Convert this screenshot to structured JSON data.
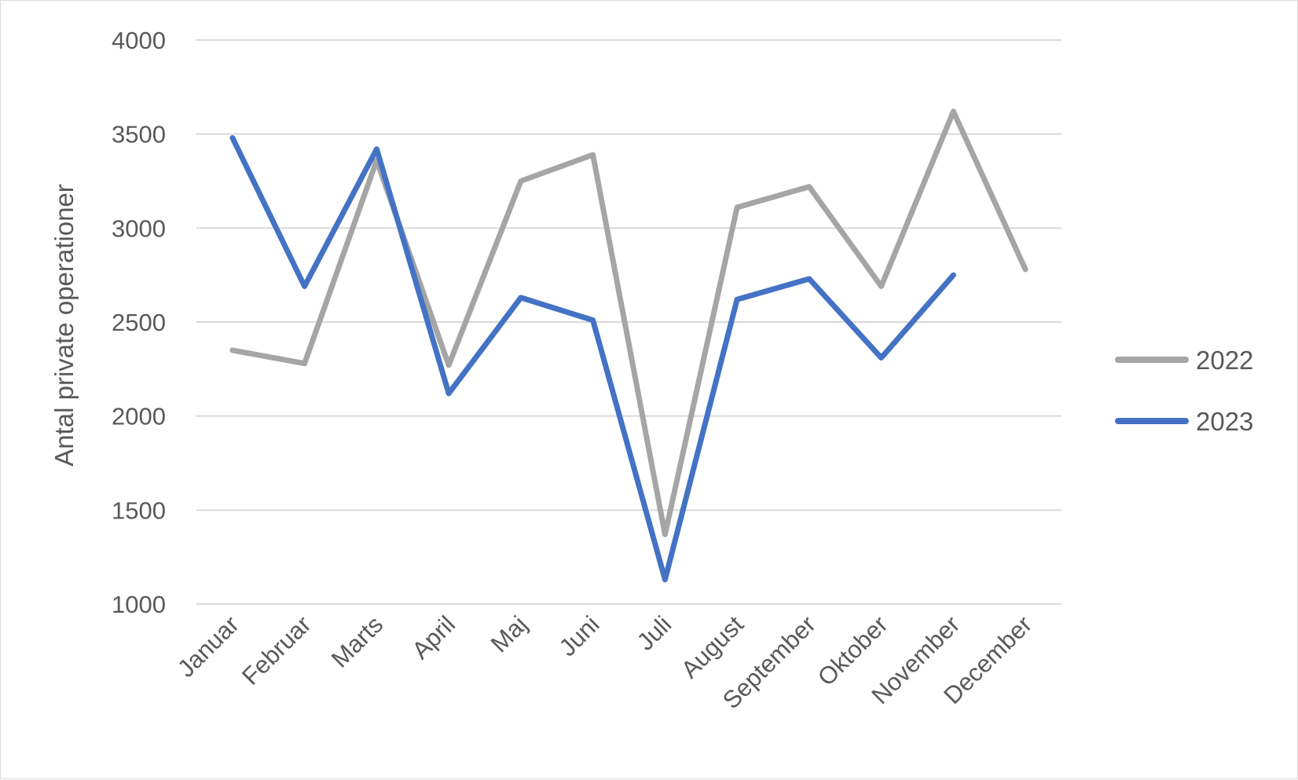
{
  "chart_data": {
    "type": "line",
    "ylabel": "Antal private operationer",
    "xlabel": "",
    "categories": [
      "Januar",
      "Februar",
      "Marts",
      "April",
      "Maj",
      "Juni",
      "Juli",
      "August",
      "September",
      "Oktober",
      "November",
      "December"
    ],
    "ylim": [
      1000,
      4000
    ],
    "yticks": [
      1000,
      1500,
      2000,
      2500,
      3000,
      3500,
      4000
    ],
    "grid": true,
    "legend_position": "right",
    "series": [
      {
        "name": "2022",
        "color": "#a5a5a5",
        "values": [
          2350,
          2280,
          3360,
          2270,
          3250,
          3390,
          1370,
          3110,
          3220,
          2690,
          3620,
          2780
        ]
      },
      {
        "name": "2023",
        "color": "#4472c4",
        "values": [
          3480,
          2690,
          3420,
          2120,
          2630,
          2510,
          1130,
          2620,
          2730,
          2310,
          2750,
          null
        ]
      }
    ]
  }
}
